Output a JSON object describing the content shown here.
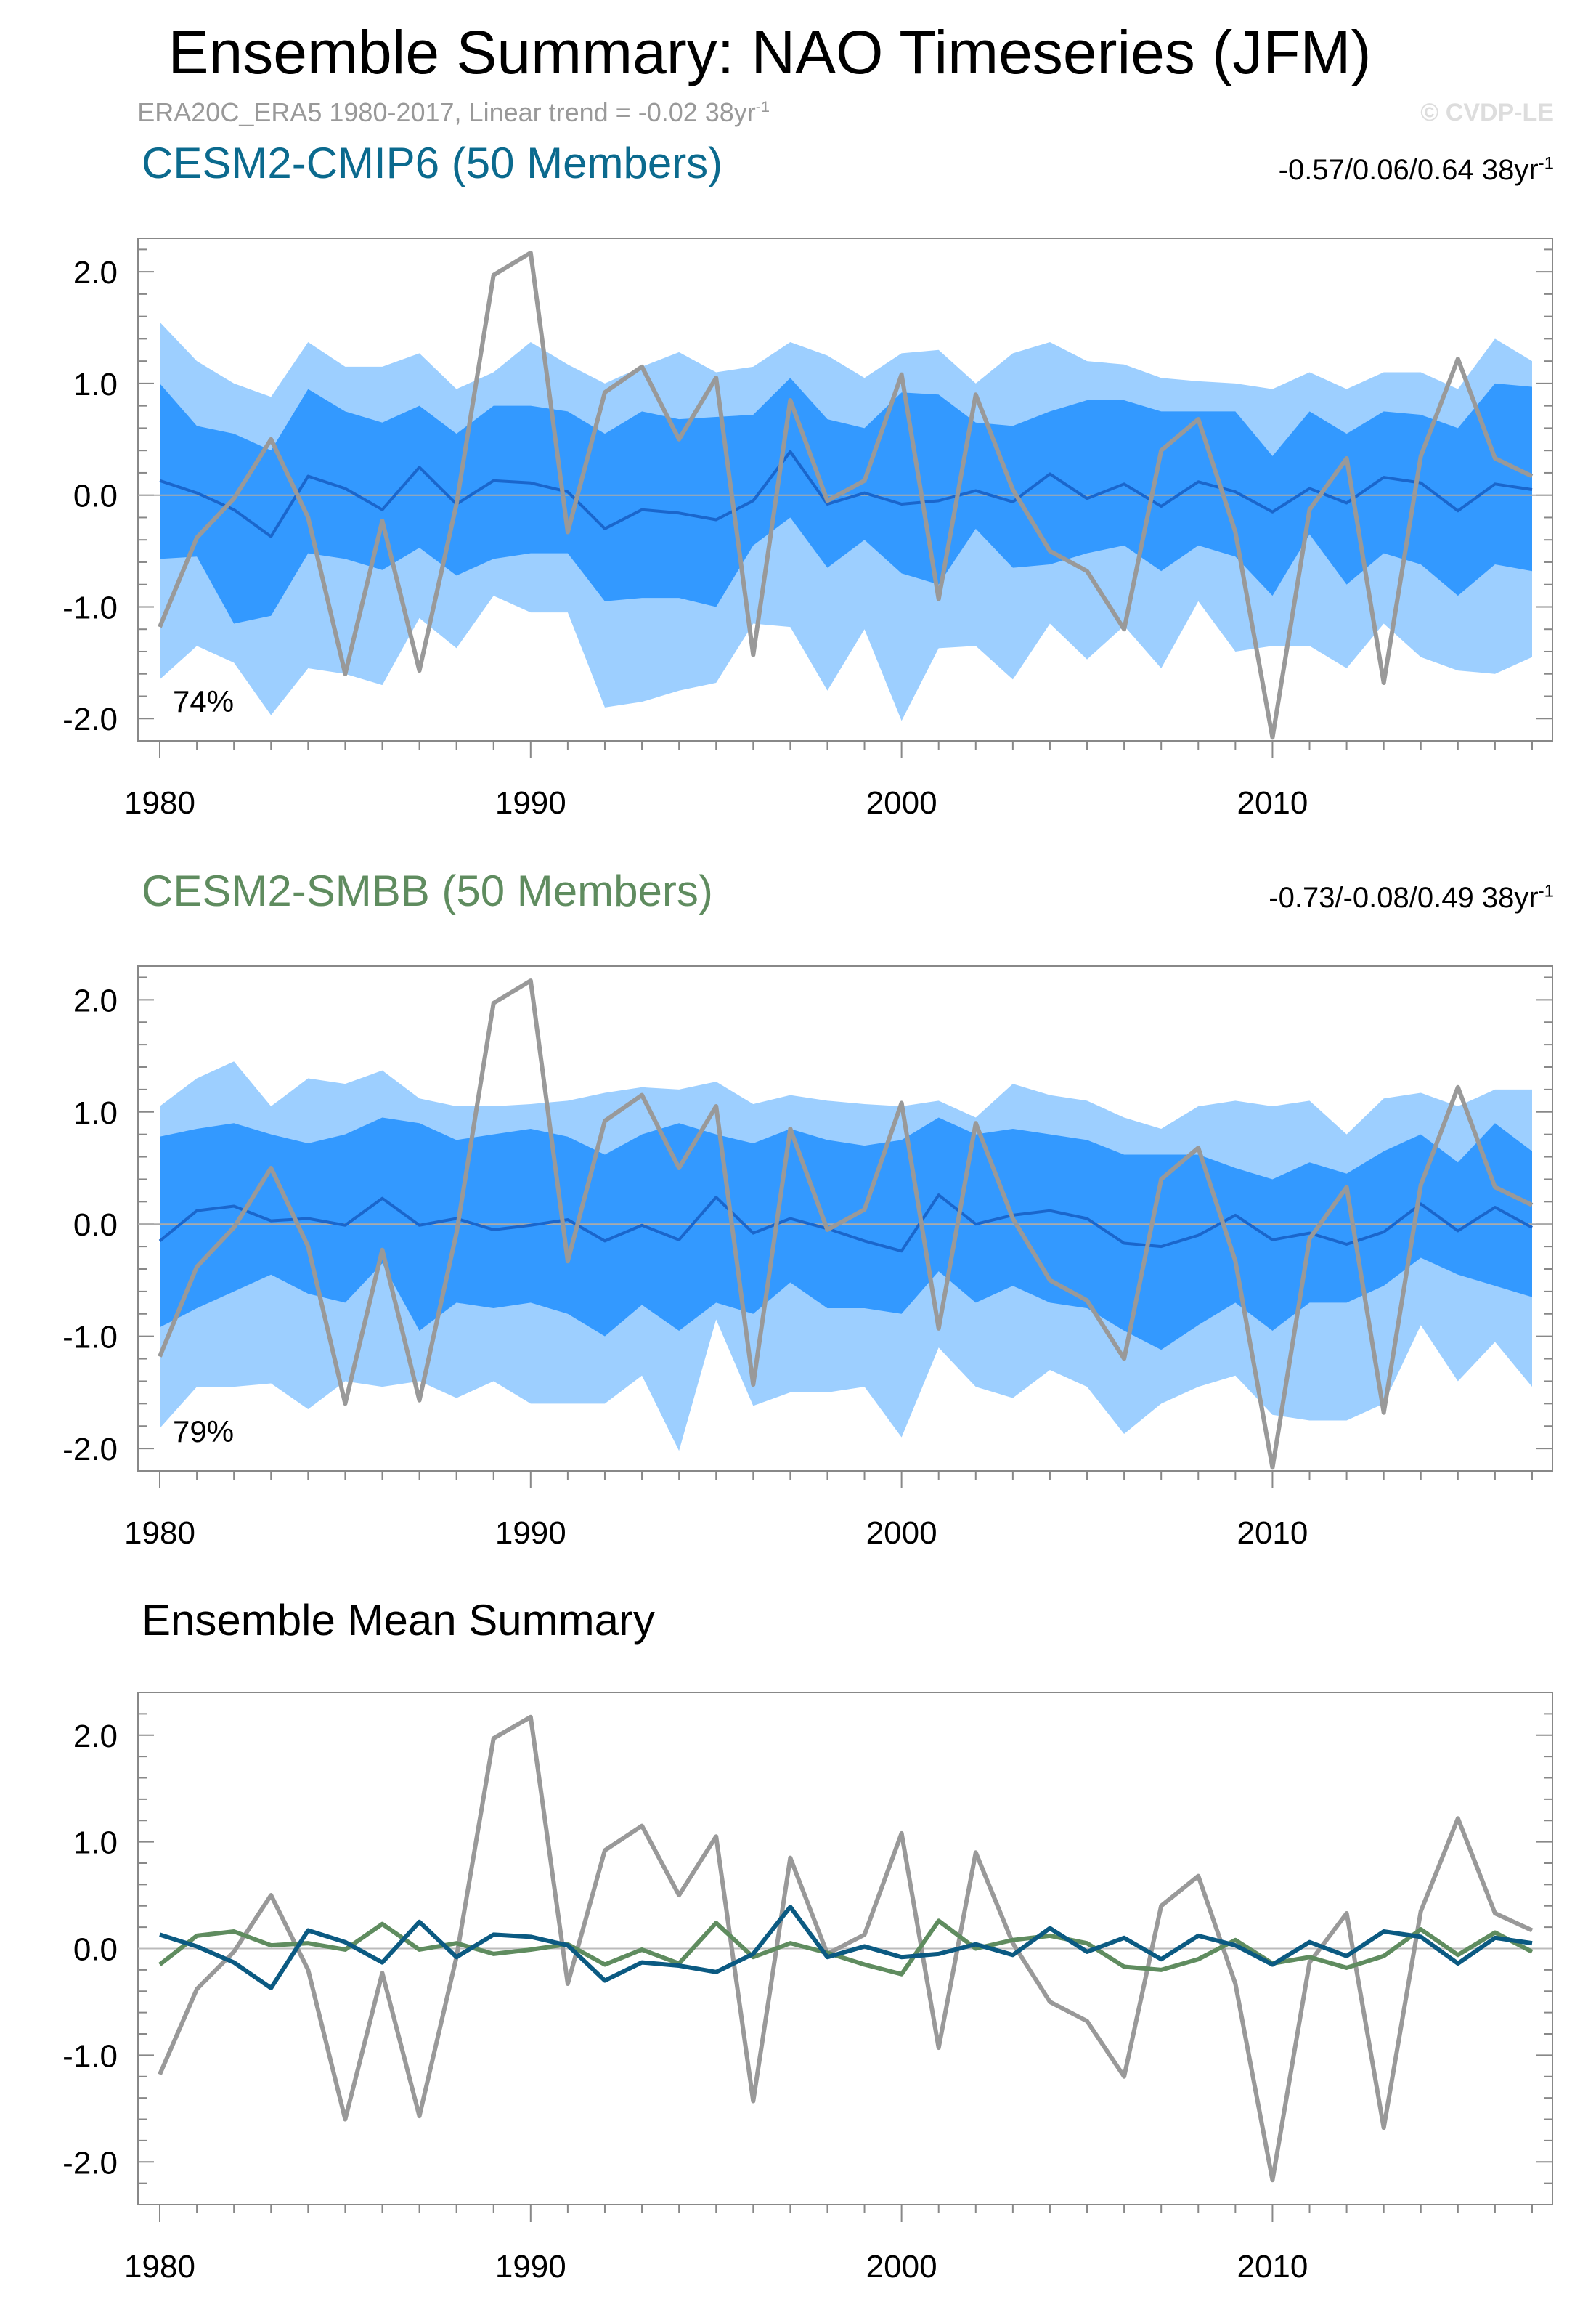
{
  "title": "Ensemble Summary: NAO Timeseries (JFM)",
  "subtitle": {
    "text": "ERA20C_ERA5 1980-2017, Linear trend = -0.02 38yr",
    "sup": "-1"
  },
  "credit": "© CVDP-LE",
  "colors": {
    "outer_band": "#9dcfff",
    "inner_band": "#3399ff",
    "member_mean_line": "#1a66cc",
    "observation": "#999999",
    "cmip6": "#0b5a82",
    "smbb": "#5f8c5f",
    "zero_line": "#aaaaaa",
    "frame": "#888888"
  },
  "chart_data": [
    {
      "id": "cmip6",
      "type": "area",
      "title": "CESM2-CMIP6 (50 Members)",
      "title_color": "#0b6a8e",
      "trend_text": "-0.57/0.06/0.64 38yr",
      "trend_sup": "-1",
      "percent_label": "74%",
      "xlim": [
        1980,
        2017
      ],
      "ylim": [
        -2.2,
        2.3
      ],
      "x_ticks": [
        "1980",
        "1990",
        "2000",
        "2010"
      ],
      "y_ticks": [
        "2.0",
        "1.0",
        "0.0",
        "-1.0",
        "-2.0"
      ],
      "years_start": 1980,
      "outer_upper": [
        1.55,
        1.2,
        1.0,
        0.88,
        1.37,
        1.15,
        1.15,
        1.27,
        0.95,
        1.1,
        1.37,
        1.17,
        1.0,
        1.15,
        1.28,
        1.1,
        1.15,
        1.37,
        1.25,
        1.05,
        1.27,
        1.3,
        1.0,
        1.27,
        1.37,
        1.2,
        1.17,
        1.05,
        1.02,
        1.0,
        0.95,
        1.1,
        0.95,
        1.1,
        1.1,
        0.95,
        1.4,
        1.2
      ],
      "inner_upper": [
        1.0,
        0.62,
        0.55,
        0.4,
        0.95,
        0.75,
        0.65,
        0.8,
        0.55,
        0.8,
        0.8,
        0.75,
        0.55,
        0.75,
        0.68,
        0.7,
        0.72,
        1.05,
        0.68,
        0.6,
        0.92,
        0.9,
        0.65,
        0.62,
        0.75,
        0.85,
        0.85,
        0.75,
        0.75,
        0.75,
        0.35,
        0.75,
        0.55,
        0.75,
        0.72,
        0.6,
        1.0,
        0.97
      ],
      "ens_mean": [
        0.13,
        0.02,
        -0.13,
        -0.37,
        0.17,
        0.06,
        -0.13,
        0.25,
        -0.08,
        0.13,
        0.11,
        0.03,
        -0.3,
        -0.13,
        -0.16,
        -0.22,
        -0.05,
        0.39,
        -0.08,
        0.02,
        -0.08,
        -0.05,
        0.04,
        -0.06,
        0.19,
        -0.03,
        0.1,
        -0.1,
        0.12,
        0.03,
        -0.15,
        0.06,
        -0.07,
        0.16,
        0.11,
        -0.14,
        0.1,
        0.05
      ],
      "inner_lower": [
        -0.57,
        -0.55,
        -1.15,
        -1.08,
        -0.52,
        -0.57,
        -0.67,
        -0.47,
        -0.72,
        -0.57,
        -0.52,
        -0.52,
        -0.95,
        -0.92,
        -0.92,
        -1.0,
        -0.45,
        -0.2,
        -0.65,
        -0.4,
        -0.7,
        -0.8,
        -0.3,
        -0.65,
        -0.62,
        -0.52,
        -0.45,
        -0.68,
        -0.45,
        -0.55,
        -0.9,
        -0.35,
        -0.8,
        -0.52,
        -0.62,
        -0.9,
        -0.62,
        -0.68
      ],
      "outer_lower": [
        -1.65,
        -1.35,
        -1.5,
        -1.97,
        -1.55,
        -1.6,
        -1.7,
        -1.1,
        -1.37,
        -0.9,
        -1.05,
        -1.05,
        -1.9,
        -1.85,
        -1.75,
        -1.68,
        -1.15,
        -1.18,
        -1.75,
        -1.2,
        -2.02,
        -1.37,
        -1.35,
        -1.65,
        -1.15,
        -1.47,
        -1.17,
        -1.55,
        -0.95,
        -1.4,
        -1.35,
        -1.35,
        -1.55,
        -1.15,
        -1.45,
        -1.57,
        -1.6,
        -1.45
      ]
    },
    {
      "id": "smbb",
      "type": "area",
      "title": "CESM2-SMBB (50 Members)",
      "title_color": "#5f8c5f",
      "trend_text": "-0.73/-0.08/0.49 38yr",
      "trend_sup": "-1",
      "percent_label": "79%",
      "xlim": [
        1980,
        2017
      ],
      "ylim": [
        -2.2,
        2.3
      ],
      "x_ticks": [
        "1980",
        "1990",
        "2000",
        "2010"
      ],
      "y_ticks": [
        "2.0",
        "1.0",
        "0.0",
        "-1.0",
        "-2.0"
      ],
      "years_start": 1980,
      "outer_upper": [
        1.05,
        1.3,
        1.45,
        1.05,
        1.3,
        1.25,
        1.37,
        1.12,
        1.05,
        1.05,
        1.07,
        1.1,
        1.17,
        1.22,
        1.2,
        1.27,
        1.07,
        1.15,
        1.1,
        1.07,
        1.05,
        1.1,
        0.95,
        1.25,
        1.15,
        1.1,
        0.95,
        0.85,
        1.05,
        1.1,
        1.05,
        1.1,
        0.8,
        1.12,
        1.17,
        1.05,
        1.2,
        1.2
      ],
      "inner_upper": [
        0.78,
        0.85,
        0.9,
        0.8,
        0.72,
        0.8,
        0.95,
        0.9,
        0.75,
        0.8,
        0.85,
        0.78,
        0.62,
        0.8,
        0.9,
        0.8,
        0.72,
        0.85,
        0.75,
        0.7,
        0.75,
        0.95,
        0.8,
        0.85,
        0.8,
        0.75,
        0.62,
        0.62,
        0.62,
        0.5,
        0.4,
        0.55,
        0.45,
        0.65,
        0.8,
        0.55,
        0.9,
        0.65
      ],
      "ens_mean": [
        -0.15,
        0.12,
        0.16,
        0.03,
        0.05,
        -0.01,
        0.23,
        -0.01,
        0.05,
        -0.05,
        -0.01,
        0.04,
        -0.15,
        -0.01,
        -0.14,
        0.24,
        -0.08,
        0.05,
        -0.04,
        -0.15,
        -0.24,
        0.26,
        0.0,
        0.08,
        0.12,
        0.05,
        -0.17,
        -0.2,
        -0.1,
        0.08,
        -0.14,
        -0.08,
        -0.18,
        -0.07,
        0.18,
        -0.06,
        0.15,
        -0.03
      ],
      "inner_lower": [
        -0.92,
        -0.75,
        -0.6,
        -0.45,
        -0.62,
        -0.7,
        -0.35,
        -0.95,
        -0.7,
        -0.75,
        -0.7,
        -0.8,
        -1.0,
        -0.72,
        -0.95,
        -0.7,
        -0.8,
        -0.52,
        -0.75,
        -0.75,
        -0.8,
        -0.42,
        -0.7,
        -0.55,
        -0.7,
        -0.75,
        -0.95,
        -1.12,
        -0.9,
        -0.7,
        -0.95,
        -0.7,
        -0.7,
        -0.55,
        -0.3,
        -0.45,
        -0.55,
        -0.65
      ],
      "outer_lower": [
        -1.82,
        -1.45,
        -1.45,
        -1.42,
        -1.65,
        -1.4,
        -1.45,
        -1.4,
        -1.55,
        -1.4,
        -1.6,
        -1.6,
        -1.6,
        -1.35,
        -2.02,
        -0.85,
        -1.62,
        -1.5,
        -1.5,
        -1.45,
        -1.9,
        -1.1,
        -1.45,
        -1.55,
        -1.3,
        -1.45,
        -1.87,
        -1.6,
        -1.45,
        -1.35,
        -1.7,
        -1.75,
        -1.75,
        -1.6,
        -0.9,
        -1.4,
        -1.05,
        -1.45
      ]
    },
    {
      "id": "summary",
      "type": "line",
      "title": "Ensemble Mean Summary",
      "title_color": "#000000",
      "xlim": [
        1980,
        2017
      ],
      "ylim": [
        -2.4,
        2.4
      ],
      "x_ticks": [
        "1980",
        "1990",
        "2000",
        "2010"
      ],
      "y_ticks": [
        "2.0",
        "1.0",
        "0.0",
        "-1.0",
        "-2.0"
      ],
      "years_start": 1980,
      "series": [
        "observation",
        "smbb",
        "cmip6"
      ]
    }
  ],
  "observation": [
    -1.18,
    -0.38,
    -0.03,
    0.5,
    -0.2,
    -1.6,
    -0.23,
    -1.57,
    -0.08,
    1.97,
    2.17,
    -0.33,
    0.92,
    1.15,
    0.5,
    1.05,
    -1.43,
    0.85,
    -0.05,
    0.13,
    1.08,
    -0.93,
    0.9,
    0.05,
    -0.5,
    -0.68,
    -1.2,
    0.4,
    0.68,
    -0.33,
    -2.17,
    -0.13,
    0.33,
    -1.68,
    0.35,
    1.22,
    0.33,
    0.17
  ]
}
